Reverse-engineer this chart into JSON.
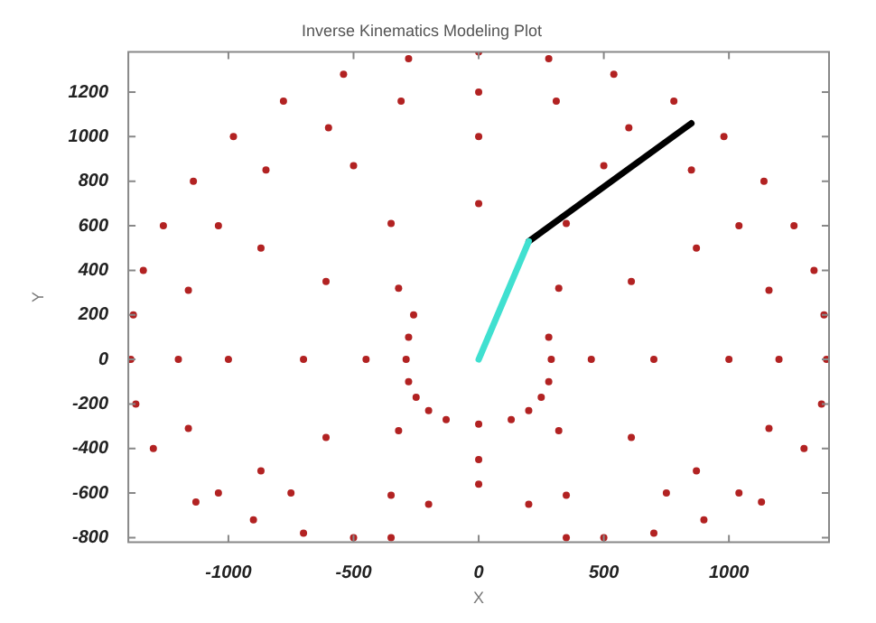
{
  "chart_data": {
    "type": "scatter",
    "title": "Inverse Kinematics Modeling Plot",
    "xlabel": "X",
    "ylabel": "Y",
    "xlim": [
      -1400,
      1400
    ],
    "ylim": [
      -820,
      1380
    ],
    "xticks": [
      -1000,
      -500,
      0,
      500,
      1000
    ],
    "yticks": [
      -800,
      -600,
      -400,
      -200,
      0,
      200,
      400,
      600,
      800,
      1000,
      1200
    ],
    "marker": "circle",
    "series": [
      {
        "color": "#b22222",
        "x": [
          1390,
          1380,
          1340,
          1260,
          1140,
          980,
          780,
          540,
          280,
          0,
          -280,
          -540,
          -780,
          -980,
          -1140,
          -1260,
          -1340,
          -1380,
          -1390,
          1370,
          1300,
          1130,
          900,
          700,
          500,
          350,
          200,
          0,
          -200,
          -350,
          -500,
          -700,
          -900,
          -1130,
          -1300,
          -1370,
          -290,
          -280,
          -250,
          -200,
          -130,
          0,
          130,
          200,
          250,
          280,
          290,
          280,
          -280,
          -260,
          700,
          610,
          350,
          0,
          -350,
          -610,
          -700,
          -610,
          -350,
          350,
          610,
          1000,
          870,
          500,
          0,
          -500,
          -870,
          -1000,
          -870,
          -750,
          750,
          870,
          450,
          320,
          -320,
          -450,
          -320,
          0,
          320,
          1200,
          1160,
          1040,
          850,
          600,
          310,
          0,
          -310,
          -600,
          -850,
          -1040,
          -1160,
          -1200,
          1160,
          1040,
          -1160,
          -1040
        ],
        "values": [
          0,
          200,
          400,
          600,
          800,
          1000,
          1160,
          1280,
          1350,
          1380,
          1350,
          1280,
          1160,
          1000,
          800,
          600,
          400,
          200,
          0,
          -200,
          -400,
          -640,
          -720,
          -780,
          -800,
          -800,
          -650,
          -560,
          -650,
          -800,
          -800,
          -780,
          -720,
          -640,
          -400,
          -200,
          0,
          -100,
          -170,
          -230,
          -270,
          -290,
          -270,
          -230,
          -170,
          -100,
          0,
          100,
          100,
          200,
          0,
          350,
          610,
          700,
          610,
          350,
          0,
          -350,
          -610,
          -610,
          -350,
          0,
          500,
          870,
          1000,
          870,
          500,
          0,
          -500,
          -600,
          -600,
          -500,
          0,
          320,
          320,
          0,
          -320,
          -450,
          -320,
          0,
          310,
          600,
          850,
          1040,
          1160,
          1200,
          1160,
          1040,
          850,
          600,
          310,
          0,
          -310,
          -600,
          -310,
          -600
        ]
      },
      {
        "type": "line",
        "marker": "none",
        "color": "#40e0d0",
        "x": [
          0,
          200
        ],
        "values": [
          0,
          530
        ]
      },
      {
        "type": "line",
        "marker": "none",
        "color": "#000000",
        "x": [
          200,
          850
        ],
        "values": [
          530,
          1060
        ]
      }
    ]
  }
}
